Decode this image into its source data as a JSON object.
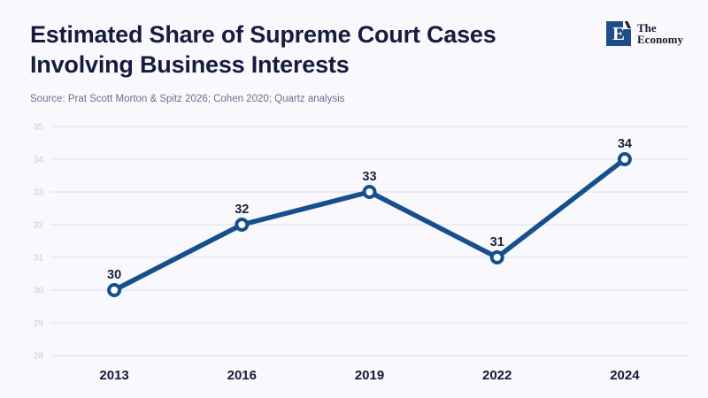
{
  "header": {
    "title": "Estimated Share of Supreme Court Cases Involving Business Interests",
    "title_line1": "Estimated Share of Supreme Court Cases",
    "title_line2": "Involving Business Interests",
    "source": "Source: Prat Scott Morton & Spitz 2026; Cohen 2020; Quartz analysis",
    "logo": {
      "letter": "E",
      "name_line1": "The",
      "name_line2": "Economy"
    }
  },
  "colors": {
    "background": "#f8f8fd",
    "line": "#15508d",
    "marker_fill": "#ffffff",
    "grid": "#dce1ee",
    "y_tick_label": "#c6ccdd",
    "x_tick_label": "#14193b",
    "data_label": "#1b2142",
    "title": "#161c3e",
    "source": "#6b7189",
    "logo_square": "#1d4e89"
  },
  "chart_data": {
    "type": "line",
    "categories": [
      "2013",
      "2016",
      "2019",
      "2022",
      "2024"
    ],
    "values": [
      30,
      32,
      33,
      31,
      34
    ],
    "title": "Estimated Share of Supreme Court Cases Involving Business Interests",
    "xlabel": "",
    "ylabel": "",
    "ylim": [
      28,
      35
    ],
    "yticks": [
      28,
      29,
      30,
      31,
      32,
      33,
      34,
      35
    ],
    "grid": true,
    "legend": false,
    "marker": "open-circle",
    "data_labels": true
  }
}
